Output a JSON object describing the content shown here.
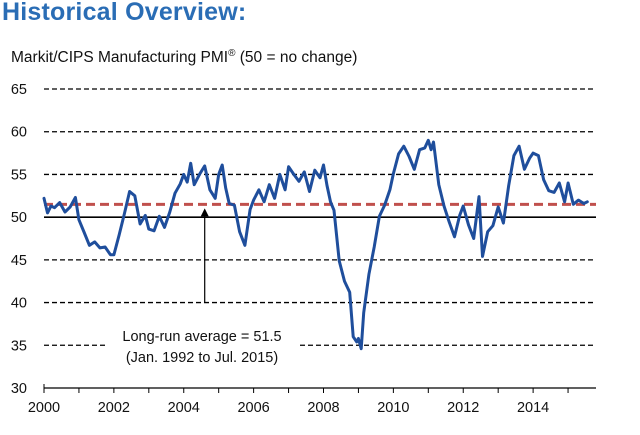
{
  "title": "Historical Overview:",
  "subtitle_main": "Markit/CIPS Manufacturing PMI",
  "subtitle_reg": "®",
  "subtitle_tail": " (50 = no change)",
  "colors": {
    "title": "#2a6db5",
    "series": "#1f4e9c",
    "average_line": "#c0504d",
    "grid": "#000000"
  },
  "chart_data": {
    "type": "line",
    "title": "Historical Overview:",
    "subtitle": "Markit/CIPS Manufacturing PMI® (50 = no change)",
    "xlabel": "",
    "ylabel": "",
    "xlim": [
      2000,
      2015.8
    ],
    "ylim": [
      30,
      65
    ],
    "y_ticks": [
      30,
      35,
      40,
      45,
      50,
      55,
      60,
      65
    ],
    "y_tick_labels": [
      "30",
      "35",
      "40",
      "45",
      "50",
      "55",
      "60",
      "65"
    ],
    "x_ticks": [
      2000,
      2002,
      2004,
      2006,
      2008,
      2010,
      2012,
      2014
    ],
    "x_tick_labels": [
      "2000",
      "2002",
      "2004",
      "2006",
      "2008",
      "2010",
      "2012",
      "2014"
    ],
    "grid": "horizontal dashed",
    "reference_lines": [
      {
        "y": 50,
        "style": "solid",
        "color": "#000000"
      },
      {
        "y": 51.5,
        "style": "dashed",
        "color": "#c0504d"
      }
    ],
    "annotation": {
      "line1": "Long-run average = 51.5",
      "line2": "(Jan. 1992 to Jul. 2015)",
      "arrow_x": 2004.6,
      "arrow_from_y": 40,
      "arrow_to_y": 51.5
    },
    "series": [
      {
        "x": [
          2000.0,
          2000.1,
          2000.2,
          2000.3,
          2000.45,
          2000.6,
          2000.75,
          2000.9,
          2001.0,
          2001.15,
          2001.3,
          2001.45,
          2001.6,
          2001.75,
          2001.9,
          2002.0,
          2002.15,
          2002.3,
          2002.45,
          2002.6,
          2002.75,
          2002.9,
          2003.0,
          2003.15,
          2003.3,
          2003.45,
          2003.6,
          2003.75,
          2003.9,
          2004.0,
          2004.1,
          2004.2,
          2004.3,
          2004.45,
          2004.6,
          2004.75,
          2004.9,
          2005.0,
          2005.1,
          2005.2,
          2005.3,
          2005.45,
          2005.6,
          2005.75,
          2005.9,
          2006.0,
          2006.15,
          2006.3,
          2006.45,
          2006.6,
          2006.75,
          2006.9,
          2007.0,
          2007.15,
          2007.3,
          2007.45,
          2007.6,
          2007.75,
          2007.9,
          2008.0,
          2008.1,
          2008.2,
          2008.3,
          2008.45,
          2008.6,
          2008.75,
          2008.85,
          2008.95,
          2009.0,
          2009.08,
          2009.15,
          2009.3,
          2009.45,
          2009.6,
          2009.75,
          2009.9,
          2010.0,
          2010.15,
          2010.3,
          2010.45,
          2010.6,
          2010.75,
          2010.9,
          2011.0,
          2011.08,
          2011.15,
          2011.3,
          2011.45,
          2011.6,
          2011.75,
          2011.9,
          2012.0,
          2012.15,
          2012.3,
          2012.45,
          2012.55,
          2012.7,
          2012.85,
          2013.0,
          2013.15,
          2013.3,
          2013.45,
          2013.6,
          2013.75,
          2013.9,
          2014.0,
          2014.15,
          2014.3,
          2014.45,
          2014.6,
          2014.75,
          2014.9,
          2015.0,
          2015.15,
          2015.3,
          2015.45,
          2015.55
        ],
        "y": [
          52.2,
          50.5,
          51.3,
          51.1,
          51.7,
          50.6,
          51.2,
          52.3,
          49.7,
          48.2,
          46.7,
          47.1,
          46.4,
          46.5,
          45.6,
          45.6,
          47.9,
          50.4,
          53.0,
          52.5,
          49.2,
          50.2,
          48.6,
          48.4,
          50.1,
          48.8,
          50.6,
          52.8,
          53.9,
          55.0,
          54.1,
          56.3,
          53.8,
          55.0,
          56.0,
          53.2,
          52.2,
          55.0,
          56.1,
          53.4,
          51.6,
          51.4,
          48.3,
          46.7,
          50.9,
          52.0,
          53.2,
          51.8,
          53.8,
          52.2,
          55.0,
          53.2,
          55.9,
          55.0,
          54.2,
          55.3,
          53.0,
          55.5,
          54.6,
          56.1,
          53.7,
          51.8,
          50.8,
          44.9,
          42.5,
          41.2,
          36.0,
          35.4,
          35.8,
          34.6,
          38.8,
          43.3,
          46.5,
          50.1,
          51.4,
          53.2,
          55.1,
          57.4,
          58.3,
          57.1,
          55.6,
          57.9,
          58.1,
          59.0,
          57.9,
          58.8,
          53.8,
          51.3,
          49.4,
          47.7,
          50.2,
          51.3,
          49.1,
          47.5,
          52.4,
          45.4,
          48.3,
          49.0,
          51.2,
          49.3,
          53.7,
          57.2,
          58.3,
          55.6,
          56.9,
          57.5,
          57.2,
          54.4,
          53.1,
          52.9,
          54.0,
          51.8,
          54.0,
          51.5,
          52.0,
          51.6,
          51.8
        ]
      }
    ]
  }
}
